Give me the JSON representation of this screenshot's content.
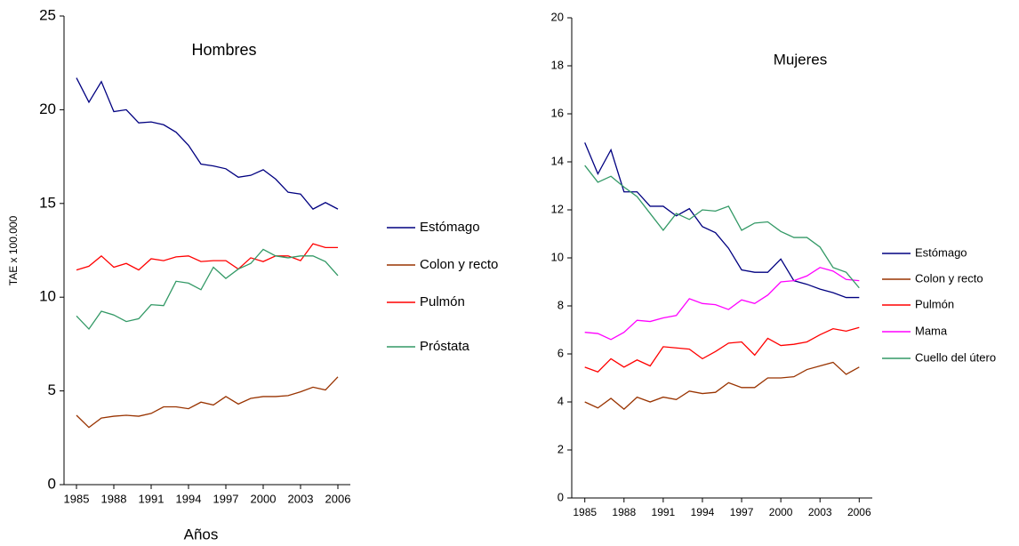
{
  "chart_data": [
    {
      "type": "line",
      "title": "Hombres",
      "ylabel": "TAE x 100.000",
      "xlabel": "Años",
      "x": [
        1985,
        1986,
        1987,
        1988,
        1989,
        1990,
        1991,
        1992,
        1993,
        1994,
        1995,
        1996,
        1997,
        1998,
        1999,
        2000,
        2001,
        2002,
        2003,
        2004,
        2005,
        2006
      ],
      "xlim": [
        1984,
        2007
      ],
      "xticks": [
        1985,
        1988,
        1991,
        1994,
        1997,
        2000,
        2003,
        2006
      ],
      "ylim": [
        0,
        25
      ],
      "yticks": [
        0,
        5,
        10,
        15,
        20,
        25
      ],
      "series": [
        {
          "name": "Estómago",
          "color": "#000080",
          "values": [
            21.7,
            20.4,
            21.5,
            19.9,
            20.0,
            19.3,
            19.35,
            19.2,
            18.8,
            18.1,
            17.1,
            17.0,
            16.85,
            16.4,
            16.5,
            16.8,
            16.3,
            15.6,
            15.5,
            14.7,
            15.05,
            14.7
          ]
        },
        {
          "name": "Colon y recto",
          "color": "#993300",
          "values": [
            3.7,
            3.05,
            3.55,
            3.65,
            3.7,
            3.65,
            3.8,
            4.15,
            4.15,
            4.05,
            4.4,
            4.25,
            4.7,
            4.3,
            4.6,
            4.7,
            4.7,
            4.75,
            4.95,
            5.2,
            5.05,
            5.75
          ]
        },
        {
          "name": "Pulmón",
          "color": "#ff0000",
          "values": [
            11.45,
            11.65,
            12.2,
            11.6,
            11.8,
            11.45,
            12.05,
            11.95,
            12.15,
            12.2,
            11.9,
            11.95,
            11.95,
            11.5,
            12.1,
            11.9,
            12.2,
            12.2,
            11.95,
            12.85,
            12.65,
            12.65
          ]
        },
        {
          "name": "Próstata",
          "color": "#339966",
          "values": [
            9.0,
            8.3,
            9.25,
            9.05,
            8.7,
            8.85,
            9.6,
            9.55,
            10.85,
            10.75,
            10.4,
            11.6,
            11.0,
            11.5,
            11.8,
            12.55,
            12.2,
            12.1,
            12.2,
            12.2,
            11.9,
            11.15
          ]
        }
      ]
    },
    {
      "type": "line",
      "title": "Mujeres",
      "x": [
        1985,
        1986,
        1987,
        1988,
        1989,
        1990,
        1991,
        1992,
        1993,
        1994,
        1995,
        1996,
        1997,
        1998,
        1999,
        2000,
        2001,
        2002,
        2003,
        2004,
        2005,
        2006
      ],
      "xlim": [
        1984,
        2007
      ],
      "xticks": [
        1985,
        1988,
        1991,
        1994,
        1997,
        2000,
        2003,
        2006
      ],
      "ylim": [
        0,
        20
      ],
      "yticks": [
        0,
        2,
        4,
        6,
        8,
        10,
        12,
        14,
        16,
        18,
        20
      ],
      "series": [
        {
          "name": "Estómago",
          "color": "#000080",
          "values": [
            14.8,
            13.5,
            14.5,
            12.75,
            12.75,
            12.15,
            12.15,
            11.75,
            12.05,
            11.3,
            11.05,
            10.4,
            9.5,
            9.4,
            9.4,
            9.95,
            9.05,
            8.9,
            8.7,
            8.55,
            8.35,
            8.35
          ]
        },
        {
          "name": "Colon y recto",
          "color": "#993300",
          "values": [
            4.0,
            3.75,
            4.15,
            3.7,
            4.2,
            4.0,
            4.2,
            4.1,
            4.45,
            4.35,
            4.4,
            4.8,
            4.6,
            4.6,
            5.0,
            5.0,
            5.05,
            5.35,
            5.5,
            5.65,
            5.15,
            5.45
          ]
        },
        {
          "name": "Pulmón",
          "color": "#ff0000",
          "values": [
            5.45,
            5.25,
            5.8,
            5.45,
            5.75,
            5.5,
            6.3,
            6.25,
            6.2,
            5.8,
            6.1,
            6.45,
            6.5,
            5.95,
            6.65,
            6.35,
            6.4,
            6.5,
            6.8,
            7.05,
            6.95,
            7.1
          ]
        },
        {
          "name": "Mama",
          "color": "#ff00ff",
          "values": [
            6.9,
            6.85,
            6.6,
            6.9,
            7.4,
            7.35,
            7.5,
            7.6,
            8.3,
            8.1,
            8.05,
            7.85,
            8.25,
            8.1,
            8.45,
            9.0,
            9.05,
            9.25,
            9.6,
            9.45,
            9.1,
            9.05
          ]
        },
        {
          "name": "Cuello del útero",
          "color": "#339966",
          "values": [
            13.85,
            13.15,
            13.4,
            12.95,
            12.55,
            11.85,
            11.15,
            11.85,
            11.6,
            12.0,
            11.95,
            12.15,
            11.15,
            11.45,
            11.5,
            11.1,
            10.85,
            10.85,
            10.45,
            9.6,
            9.4,
            8.75
          ]
        }
      ]
    }
  ]
}
